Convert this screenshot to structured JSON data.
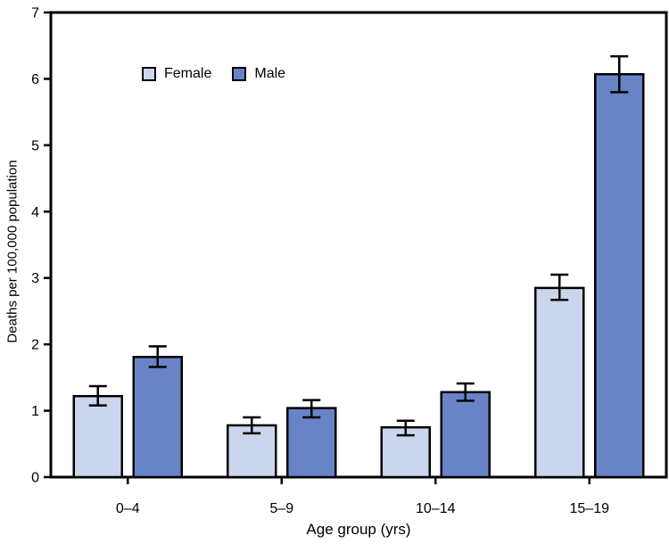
{
  "chart_data": {
    "type": "bar",
    "categories": [
      "0–4",
      "5–9",
      "10–14",
      "15–19"
    ],
    "series": [
      {
        "name": "Female",
        "color": "#CBD5EC",
        "values": [
          1.22,
          0.78,
          0.75,
          2.85
        ],
        "ci_low": [
          1.08,
          0.66,
          0.63,
          2.67
        ],
        "ci_high": [
          1.37,
          0.9,
          0.85,
          3.05
        ]
      },
      {
        "name": "Male",
        "color": "#6984C6",
        "values": [
          1.81,
          1.04,
          1.28,
          6.07
        ],
        "ci_low": [
          1.66,
          0.9,
          1.15,
          5.8
        ],
        "ci_high": [
          1.97,
          1.16,
          1.41,
          6.34
        ]
      }
    ],
    "xlabel": "Age group (yrs)",
    "ylabel": "Deaths per 100,000 population",
    "ylim": [
      0,
      7
    ],
    "yticks": [
      0,
      1,
      2,
      3,
      4,
      5,
      6,
      7
    ],
    "grid": false,
    "error_bars": true,
    "legend_position": "top-left-inside",
    "bar_border_color": "#000000",
    "axis_color": "#000000"
  }
}
